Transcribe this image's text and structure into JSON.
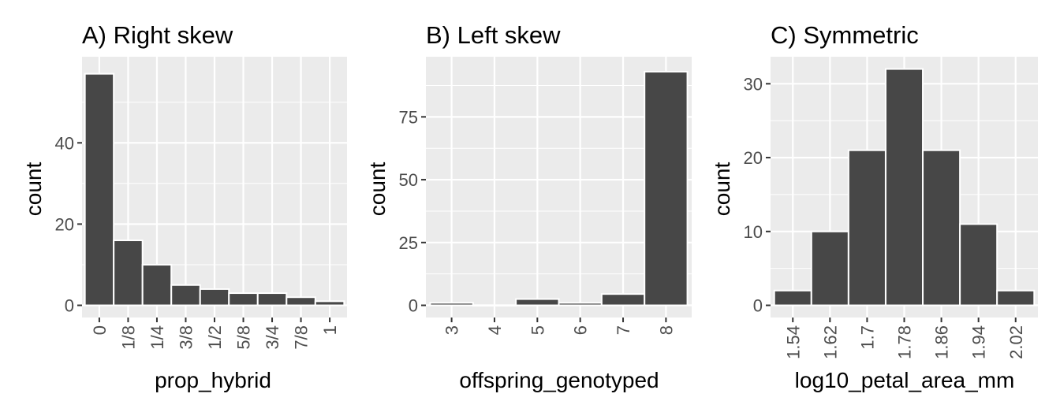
{
  "chart_data": [
    {
      "type": "bar",
      "title": "A) Right skew",
      "xlabel": "prop_hybrid",
      "ylabel": "count",
      "categories": [
        "0",
        "1/8",
        "1/4",
        "3/8",
        "1/2",
        "5/8",
        "3/4",
        "7/8",
        "1"
      ],
      "values": [
        57,
        16,
        10,
        5,
        4,
        3,
        3,
        2,
        1
      ],
      "ylim": [
        0,
        60
      ],
      "yticks": [
        0,
        20,
        40
      ],
      "ytick_labels": [
        "0",
        "20",
        "40"
      ],
      "grid": true
    },
    {
      "type": "bar",
      "title": "B) Left skew",
      "xlabel": "offspring_genotyped",
      "ylabel": "count",
      "categories": [
        "3",
        "4",
        "5",
        "6",
        "7",
        "8"
      ],
      "values": [
        1,
        0,
        2.5,
        1,
        4.5,
        93
      ],
      "ylim": [
        0,
        97
      ],
      "yticks": [
        0,
        25,
        50,
        75
      ],
      "ytick_labels": [
        "0",
        "25",
        "50",
        "75"
      ],
      "grid": true
    },
    {
      "type": "bar",
      "title": "C) Symmetric",
      "xlabel": "log10_petal_area_mm",
      "ylabel": "count",
      "categories": [
        "1.54",
        "1.62",
        "1.7",
        "1.78",
        "1.86",
        "1.94",
        "2.02"
      ],
      "values": [
        2,
        10,
        21,
        32,
        21,
        11,
        2
      ],
      "ylim": [
        0,
        33
      ],
      "yticks": [
        0,
        10,
        20,
        30
      ],
      "ytick_labels": [
        "0",
        "10",
        "20",
        "30"
      ],
      "grid": true
    }
  ],
  "colors": {
    "panel_bg": "#ebebeb",
    "grid": "#ffffff",
    "bar_fill": "#474747",
    "bar_edge": "#ffffff",
    "tick_text": "#4d4d4d",
    "tick_mark": "#333333"
  }
}
